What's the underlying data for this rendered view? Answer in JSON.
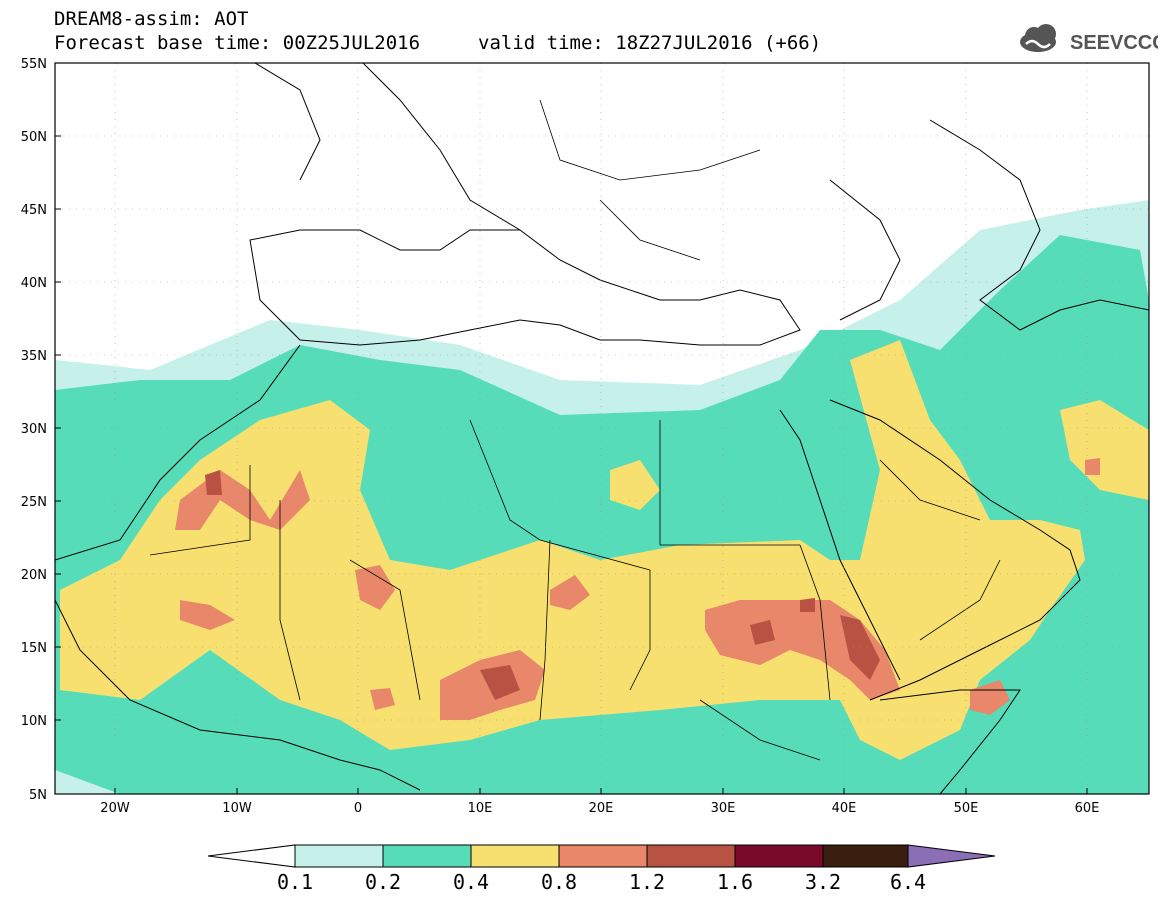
{
  "title": {
    "line1": "DREAM8-assim: AOT",
    "line2": "Forecast base time: 00Z25JUL2016",
    "valid": "valid time: 18Z27JUL2016 (+66)"
  },
  "logo": {
    "text": "SEEVCCC",
    "icon": "cloud-icon"
  },
  "axes": {
    "lon_ticks": [
      "20W",
      "10W",
      "0",
      "10E",
      "20E",
      "30E",
      "40E",
      "50E",
      "60E"
    ],
    "lat_ticks": [
      "55N",
      "50N",
      "45N",
      "40N",
      "35N",
      "30N",
      "25N",
      "20N",
      "15N",
      "10N",
      "5N"
    ]
  },
  "colorbar": {
    "labels": [
      "0.1",
      "0.2",
      "0.4",
      "0.8",
      "1.2",
      "1.6",
      "3.2",
      "6.4"
    ],
    "colors": [
      "#c6f0ea",
      "#56dcb8",
      "#f8e070",
      "#e8876a",
      "#b85344",
      "#7a0a2a",
      "#3a1e10",
      "#8a6fb6"
    ]
  },
  "colors": {
    "c1": "#c6f0ea",
    "c2": "#56dcb8",
    "c3": "#f8e070",
    "c4": "#e8876a",
    "c5": "#b85344"
  }
}
